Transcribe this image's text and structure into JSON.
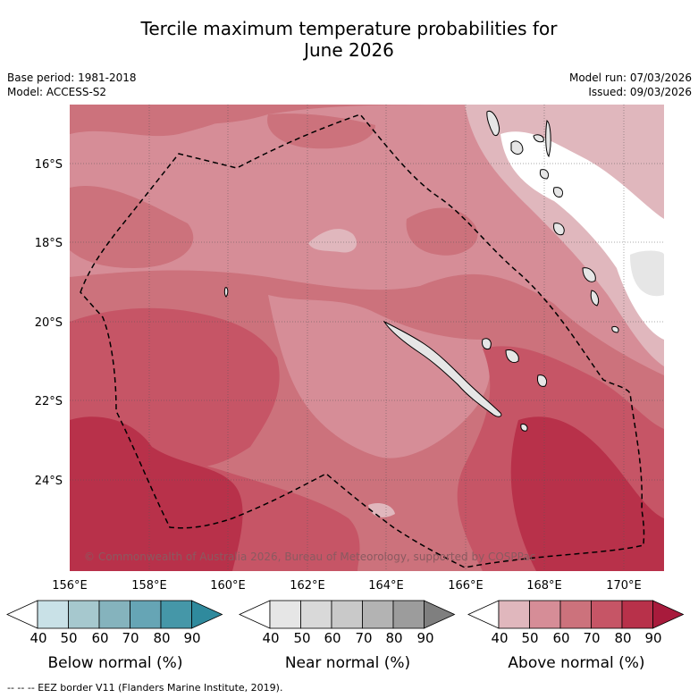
{
  "title": {
    "line1": "Tercile maximum temperature probabilities for",
    "line2": "June 2026"
  },
  "meta": {
    "base_period": "Base period: 1981-2018",
    "model": "Model: ACCESS-S2",
    "model_run": "Model run: 07/03/2026",
    "issued": "Issued: 09/03/2026"
  },
  "axes": {
    "lon_labels": [
      "156°E",
      "158°E",
      "160°E",
      "162°E",
      "164°E",
      "166°E",
      "168°E",
      "170°E"
    ],
    "lat_labels": [
      "16°S",
      "18°S",
      "20°S",
      "22°S",
      "24°S"
    ]
  },
  "copyright": "© Commonwealth of Australia 2026, Bureau of Meteorology, supported by COSPPac",
  "colorbars": [
    {
      "name": "below",
      "label": "Below normal (%)",
      "ticks": [
        "40",
        "50",
        "60",
        "70",
        "80",
        "90"
      ],
      "colors": [
        "#ffffff",
        "#c9e1e7",
        "#a6c8ce",
        "#85b3bd",
        "#66a5b5",
        "#4597a8",
        "#2f8a9d"
      ]
    },
    {
      "name": "near",
      "label": "Near normal (%)",
      "ticks": [
        "40",
        "50",
        "60",
        "70",
        "80",
        "90"
      ],
      "colors": [
        "#ffffff",
        "#e6e6e6",
        "#d9d9d9",
        "#c9c9c9",
        "#b3b3b3",
        "#9c9c9c",
        "#7f7f7f"
      ]
    },
    {
      "name": "above",
      "label": "Above normal (%)",
      "ticks": [
        "40",
        "50",
        "60",
        "70",
        "80",
        "90"
      ],
      "colors": [
        "#ffffff",
        "#e0b7bd",
        "#d68d97",
        "#cc727c",
        "#c65566",
        "#b8314a",
        "#a81b3c"
      ]
    }
  ],
  "footer": "-- -- -- EEZ border V11 (Flanders Marine Institute, 2019)."
}
